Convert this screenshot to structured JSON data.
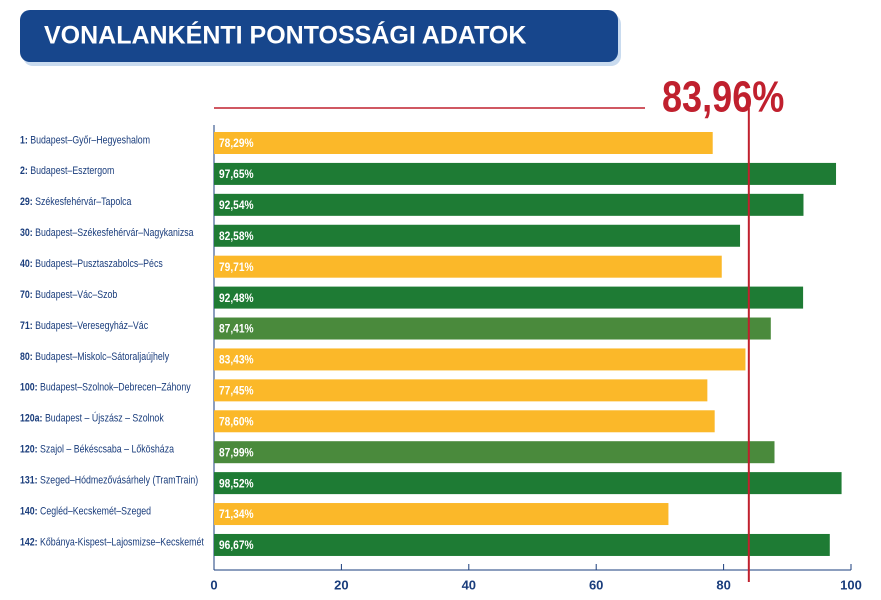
{
  "chart_data": {
    "type": "bar",
    "orientation": "horizontal",
    "title": "VONALANKÉNTI PONTOSSÁGI ADATOK",
    "categories": [
      "1: Budapest–Győr–Hegyeshalom",
      "2: Budapest–Esztergom",
      "29: Székesfehérvár–Tapolca",
      "30: Budapest–Székesfehérvár–Nagykanizsa",
      "40: Budapest–Pusztaszabolcs–Pécs",
      "70: Budapest–Vác–Szob",
      "71: Budapest–Veresegyház–Vác",
      "80: Budapest–Miskolc–Sátoraljaújhely",
      "100: Budapest–Szolnok–Debrecen–Záhony",
      "120a: Budapest – Újszász – Szolnok",
      "120: Szajol – Békéscsaba – Lőkösháza",
      "131: Szeged–Hódmezővásárhely (TramTrain)",
      "140: Cegléd–Kecskemét–Szeged",
      "142: Kőbánya-Kispest–Lajosmizse–Kecskemét"
    ],
    "values": [
      78.29,
      97.65,
      92.54,
      82.58,
      79.71,
      92.48,
      87.41,
      83.43,
      77.45,
      78.6,
      87.99,
      98.52,
      71.34,
      96.67
    ],
    "value_labels": [
      "78,29%",
      "97,65%",
      "92,54%",
      "82,58%",
      "79,71%",
      "92,48%",
      "87,41%",
      "83,43%",
      "77,45%",
      "78,60%",
      "87,99%",
      "98,52%",
      "71,34%",
      "96,67%"
    ],
    "colors": [
      "#fbb829",
      "#1e7b34",
      "#1e7b34",
      "#1e7b34",
      "#fbb829",
      "#1e7b34",
      "#4a8a3c",
      "#fbb829",
      "#fbb829",
      "#fbb829",
      "#4a8a3c",
      "#1e7b34",
      "#fbb829",
      "#1e7b34"
    ],
    "xlim": [
      0,
      100
    ],
    "xticks": [
      0,
      20,
      40,
      60,
      80,
      100
    ],
    "reference_line": {
      "value": 83.96,
      "label": "83,96%",
      "color": "#c0202e"
    }
  }
}
